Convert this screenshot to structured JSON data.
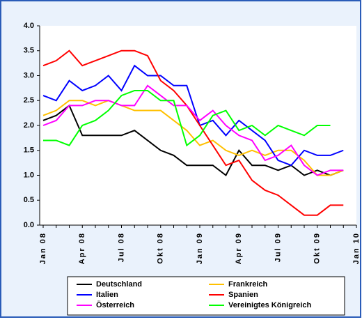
{
  "chart_data": {
    "type": "line",
    "categories": [
      "Jan 08",
      null,
      null,
      "Apr 08",
      null,
      null,
      "Jul 08",
      null,
      null,
      "Okt 08",
      null,
      null,
      "Jan 09",
      null,
      null,
      "Apr 09",
      null,
      null,
      "Jul 09",
      null,
      null,
      "Okt 09",
      null,
      null,
      "Jan 10"
    ],
    "series": [
      {
        "name": "Deutschland",
        "color": "#000000",
        "values": [
          2.1,
          2.2,
          2.4,
          1.8,
          1.8,
          1.8,
          1.8,
          1.9,
          1.7,
          1.5,
          1.4,
          1.2,
          1.2,
          1.2,
          1.0,
          1.5,
          1.2,
          1.2,
          1.1,
          1.2,
          1.0,
          1.1,
          1.0,
          1.1,
          null
        ]
      },
      {
        "name": "Frankreich",
        "color": "#ffc000",
        "values": [
          2.2,
          2.3,
          2.5,
          2.5,
          2.4,
          2.5,
          2.4,
          2.3,
          2.3,
          2.3,
          2.1,
          1.9,
          1.6,
          1.7,
          1.5,
          1.4,
          1.5,
          1.4,
          1.5,
          1.5,
          1.3,
          1.0,
          1.0,
          1.1,
          null
        ]
      },
      {
        "name": "Italien",
        "color": "#0000ff",
        "values": [
          2.6,
          2.5,
          2.9,
          2.7,
          2.8,
          3.0,
          2.7,
          3.2,
          3.0,
          3.0,
          2.8,
          2.8,
          2.0,
          2.1,
          1.8,
          2.1,
          1.9,
          1.7,
          1.3,
          1.2,
          1.5,
          1.4,
          1.4,
          1.5,
          null
        ]
      },
      {
        "name": "Spanien",
        "color": "#ff0000",
        "values": [
          3.2,
          3.3,
          3.5,
          3.2,
          3.3,
          3.4,
          3.5,
          3.5,
          3.4,
          2.9,
          2.7,
          2.4,
          2.0,
          1.6,
          1.2,
          1.3,
          0.9,
          0.7,
          0.6,
          0.4,
          0.2,
          0.2,
          0.4,
          0.4,
          null
        ]
      },
      {
        "name": "Österreich",
        "color": "#ff00ff",
        "values": [
          2.0,
          2.1,
          2.4,
          2.4,
          2.5,
          2.5,
          2.4,
          2.4,
          2.8,
          2.6,
          2.4,
          2.4,
          2.1,
          2.3,
          2.0,
          1.8,
          1.7,
          1.3,
          1.4,
          1.6,
          1.2,
          1.0,
          1.1,
          1.1,
          null
        ]
      },
      {
        "name": "Vereinigtes Königreich",
        "color": "#00ff00",
        "values": [
          1.7,
          1.7,
          1.6,
          2.0,
          2.1,
          2.3,
          2.6,
          2.7,
          2.7,
          2.5,
          2.5,
          1.6,
          1.8,
          2.2,
          2.3,
          1.9,
          2.0,
          1.8,
          2.0,
          1.9,
          1.8,
          2.0,
          2.0,
          null,
          null
        ]
      }
    ],
    "ylim": [
      0,
      4
    ],
    "yticks": [
      {
        "value": 0,
        "label": "0.0"
      },
      {
        "value": 0.5,
        "label": "0.5"
      },
      {
        "value": 1,
        "label": "1.0"
      },
      {
        "value": 1.5,
        "label": "1.5"
      },
      {
        "value": 2,
        "label": "2.0"
      },
      {
        "value": 2.5,
        "label": "2.5"
      },
      {
        "value": 3,
        "label": "3.0"
      },
      {
        "value": 3.5,
        "label": "3.5"
      },
      {
        "value": 4,
        "label": "4.0"
      }
    ],
    "legend": "bottom"
  }
}
